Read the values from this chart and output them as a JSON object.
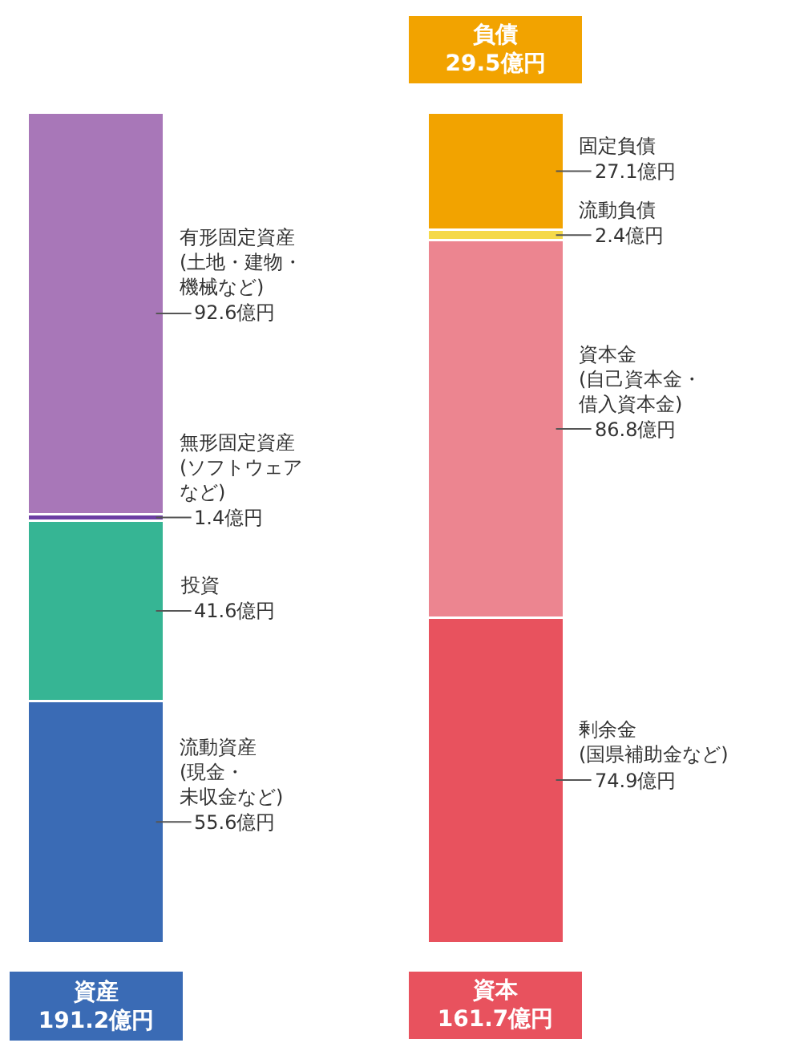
{
  "chart_data": {
    "type": "bar",
    "stacked": true,
    "legend": false,
    "categories": [
      "資産\n191.2億円",
      "資本\n161.7億円"
    ],
    "annotations": [
      "負債\n29.5億円"
    ],
    "series": [
      {
        "name": "流動資産(現金・未収金など)",
        "color": "#3a6bb5",
        "values": [
          55.6,
          null
        ],
        "value_labels": [
          "55.6億円",
          null
        ]
      },
      {
        "name": "投資",
        "color": "#36b594",
        "values": [
          41.6,
          null
        ],
        "value_labels": [
          "41.6億円",
          null
        ]
      },
      {
        "name": "無形固定資産(ソフトウェアなど)",
        "color": "#6c3fa3",
        "values": [
          1.4,
          null
        ],
        "value_labels": [
          "1.4億円",
          null
        ]
      },
      {
        "name": "有形固定資産(土地・建物・機械など)",
        "color": "#a877b8",
        "values": [
          92.6,
          null
        ],
        "value_labels": [
          "92.6億円",
          null
        ]
      },
      {
        "name": "剰余金(国県補助金など)",
        "color": "#e8525e",
        "values": [
          null,
          74.9
        ],
        "value_labels": [
          null,
          "74.9億円"
        ]
      },
      {
        "name": "資本金(自己資本金・借入資本金)",
        "color": "#ec8590",
        "values": [
          null,
          86.8
        ],
        "value_labels": [
          null,
          "86.8億円"
        ]
      },
      {
        "name": "流動負債",
        "color": "#f5d94a",
        "values": [
          null,
          2.4
        ],
        "value_labels": [
          null,
          "2.4億円"
        ]
      },
      {
        "name": "固定負債",
        "color": "#f2a300",
        "values": [
          null,
          27.1
        ],
        "value_labels": [
          null,
          "27.1億円"
        ]
      }
    ]
  }
}
